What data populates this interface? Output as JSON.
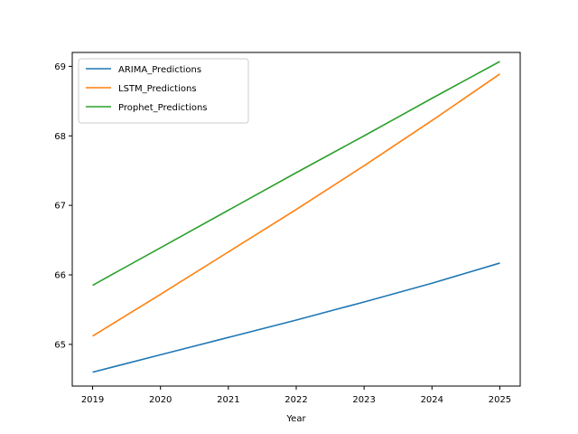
{
  "chart_data": {
    "type": "line",
    "title": "",
    "xlabel": "Year",
    "ylabel": "",
    "x": [
      2019,
      2020,
      2021,
      2022,
      2023,
      2024,
      2025
    ],
    "xlim": [
      2018.7,
      2025.3
    ],
    "ylim": [
      64.4,
      69.2
    ],
    "x_ticks": [
      "2019",
      "2020",
      "2021",
      "2022",
      "2023",
      "2024",
      "2025"
    ],
    "y_ticks": [
      "65",
      "66",
      "67",
      "68",
      "69"
    ],
    "grid": false,
    "legend_position": "top-left",
    "series": [
      {
        "name": "ARIMA_Predictions",
        "color": "#1f77b4",
        "values": [
          64.6,
          64.85,
          65.1,
          65.35,
          65.61,
          65.88,
          66.17
        ]
      },
      {
        "name": "LSTM_Predictions",
        "color": "#ff7f0e",
        "values": [
          65.12,
          65.72,
          66.33,
          66.94,
          67.57,
          68.22,
          68.89
        ]
      },
      {
        "name": "Prophet_Predictions",
        "color": "#2ca02c",
        "values": [
          65.85,
          66.39,
          66.93,
          67.47,
          68.0,
          68.54,
          69.07
        ]
      }
    ]
  }
}
